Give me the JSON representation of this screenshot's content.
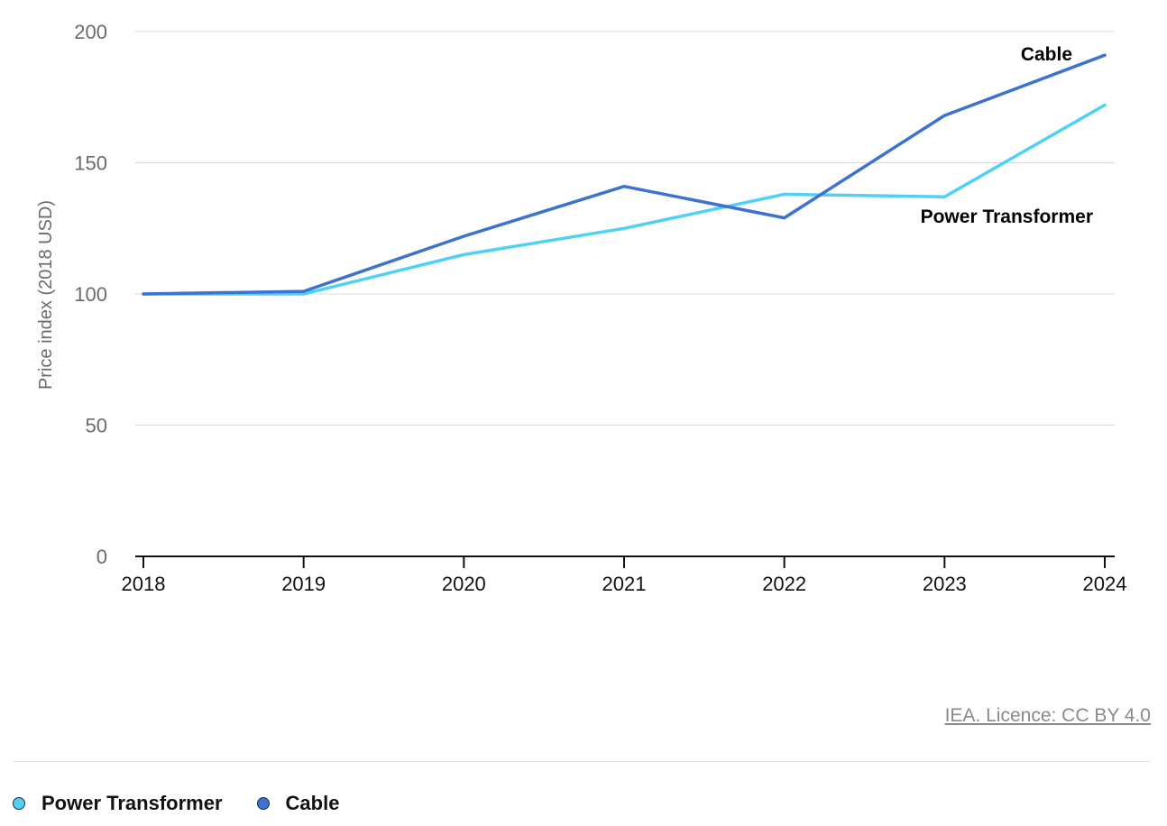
{
  "chart_data": {
    "type": "line",
    "title": "",
    "xlabel": "",
    "ylabel": "Price index (2018 USD)",
    "x": [
      2018,
      2019,
      2020,
      2021,
      2022,
      2023,
      2024
    ],
    "x_tick_labels": [
      "2018",
      "2019",
      "2020",
      "2021",
      "2022",
      "2023",
      "2024"
    ],
    "ylim": [
      0,
      200
    ],
    "y_ticks": [
      0,
      50,
      100,
      150,
      200
    ],
    "y_tick_labels": [
      "0",
      "50",
      "100",
      "150",
      "200"
    ],
    "grid": true,
    "legend_position": "bottom-left",
    "series": [
      {
        "name": "Power Transformer",
        "color": "#4fd1f5",
        "values": [
          100,
          100,
          115,
          125,
          138,
          137,
          172
        ]
      },
      {
        "name": "Cable",
        "color": "#3d72cf",
        "values": [
          100,
          101,
          122,
          141,
          129,
          168,
          191
        ]
      }
    ]
  },
  "labels": {
    "power_transformer": "Power Transformer",
    "cable": "Cable"
  },
  "footer": {
    "licence": "IEA. Licence: CC BY 4.0"
  },
  "legend": {
    "items": [
      {
        "label": "Power Transformer",
        "color": "#4fd1f5"
      },
      {
        "label": "Cable",
        "color": "#3d72cf"
      }
    ]
  }
}
